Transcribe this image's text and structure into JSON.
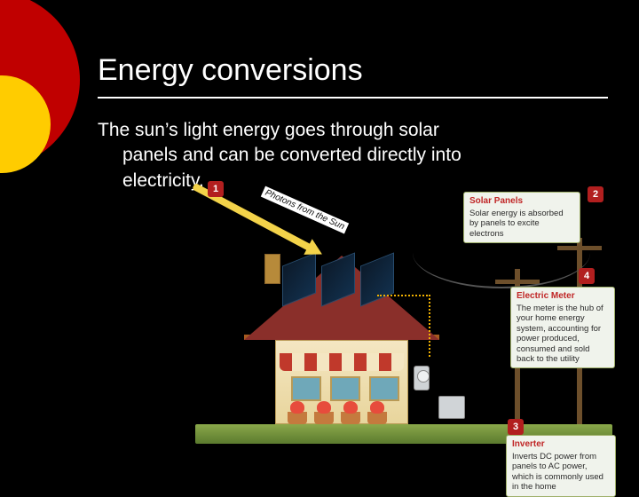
{
  "slide": {
    "title": "Energy conversions",
    "body_line1": "The sun’s light energy goes through solar",
    "body_line2": "panels and can be converted directly into",
    "body_line3": "electricity."
  },
  "decor": {
    "bg": "#000000",
    "circle_outer": "#c00000",
    "circle_inner": "#ffcc00",
    "text_color": "#ffffff"
  },
  "infographic": {
    "type": "infographic",
    "photon_label": "Photons from the Sun",
    "badges": {
      "b1": "1",
      "b2": "2",
      "b3": "3",
      "b4": "4"
    },
    "callouts": {
      "solar_panels": {
        "title": "Solar Panels",
        "text": "Solar energy is absorbed by panels to excite electrons"
      },
      "electric_meter": {
        "title": "Electric Meter",
        "text": "The meter is the hub of your home energy system, accounting for power produced, consumed and sold back to the utility"
      },
      "inverter": {
        "title": "Inverter",
        "text": "Inverts DC power from panels to AC power, which is commonly used in the home"
      }
    },
    "colors": {
      "badge": "#b21f1f",
      "callout_bg": "#f0f3ec",
      "callout_border": "#9fb06a",
      "callout_title": "#c02626",
      "photon_arrow": "#f3d34a",
      "roof": "#8a2f2a",
      "wall": "#e8d59c",
      "panel": "#12304d",
      "ground": "#5b7a2e",
      "pole": "#6d4f2b",
      "dotted": "#f0b000"
    }
  }
}
